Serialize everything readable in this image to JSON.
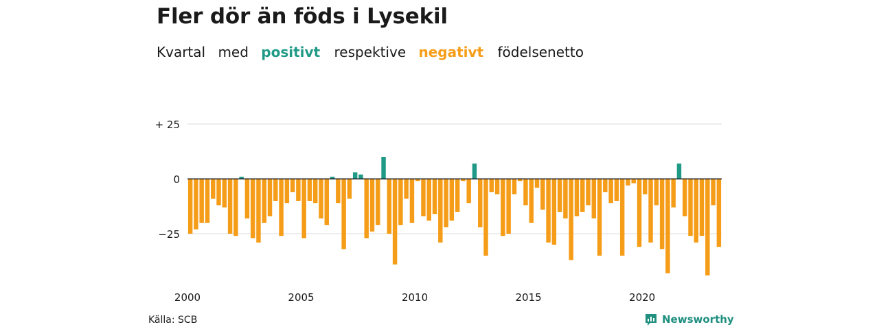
{
  "title": "Fler dör än föds i Lysekil",
  "subtitle": {
    "part1": "Kvartal",
    "part2": "med",
    "positive": "positivt",
    "part3": "respektive",
    "negative": "negativt",
    "part4": "födelsenetto"
  },
  "source": "Källa: SCB",
  "brand": "Newsworthy",
  "colors": {
    "positive": "#1f9a87",
    "negative": "#f59d18",
    "grid": "#dddddd"
  },
  "chart_data": {
    "type": "bar",
    "x_start": "2000Q1",
    "ylim": [
      -45,
      28
    ],
    "yticks": [
      {
        "value": 25,
        "label": "+ 25"
      },
      {
        "value": 0,
        "label": "0"
      },
      {
        "value": -25,
        "label": "−25"
      }
    ],
    "xticks": [
      "2000",
      "2005",
      "2010",
      "2015",
      "2020"
    ],
    "values": [
      -25,
      -23,
      -20,
      -20,
      -9,
      -12,
      -13,
      -25,
      -26,
      1,
      -18,
      -27,
      -29,
      -20,
      -17,
      -10,
      -26,
      -11,
      -6,
      -10,
      -27,
      -10,
      -11,
      -18,
      -21,
      1,
      -11,
      -32,
      -9,
      3,
      2,
      -27,
      -24,
      -21,
      10,
      -25,
      -39,
      -21,
      -9,
      -20,
      -1,
      -17,
      -19,
      -16,
      -29,
      -22,
      -19,
      -15,
      -1,
      -11,
      7,
      -22,
      -35,
      -6,
      -7,
      -26,
      -25,
      -7,
      -1,
      -12,
      -20,
      -4,
      -14,
      -29,
      -30,
      -15,
      -18,
      -37,
      -17,
      -15,
      -12,
      -18,
      -35,
      -6,
      -11,
      -10,
      -35,
      -3,
      -2,
      -31,
      -7,
      -29,
      -12,
      -32,
      -43,
      -13,
      7,
      -17,
      -26,
      -29,
      -26,
      -44,
      -12,
      -31
    ]
  }
}
